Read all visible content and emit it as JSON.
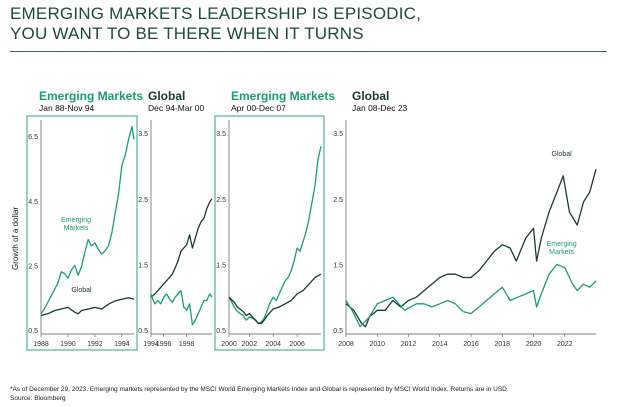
{
  "title_lines": [
    "EMERGING MARKETS LEADERSHIP IS EPISODIC,",
    "YOU WANT TO BE THERE WHEN IT TURNS"
  ],
  "ylabel": "Growth of a dollar",
  "footnote": "*As of December 29, 2023. Emerging markets represented by the MSCI World Emerging Markets Index and Global is represented by MSCI World Index. Returns are in USD.",
  "source": "Source: Bloomberg",
  "colors": {
    "emerging": "#1a9e6e",
    "global": "#1a3a2c",
    "box": "#4cb890"
  },
  "panels": [
    {
      "leader": "Emerging Markets",
      "range": "Jan 88-Nov 94"
    },
    {
      "leader": "Global",
      "range": "Dec 94-Mar 00"
    },
    {
      "leader": "Emerging Markets",
      "range": "Apr 00-Dec 07"
    },
    {
      "leader": "Global",
      "range": "Jan 08-Dec 23"
    }
  ],
  "chart_data": [
    {
      "type": "line",
      "title": "Emerging Markets Jan 88-Nov 94",
      "ylabel": "Growth of a dollar",
      "ylim": [
        0.5,
        7.0
      ],
      "yticks": [
        0.5,
        2.5,
        4.5,
        6.5
      ],
      "xlim": [
        1988.0,
        1994.9
      ],
      "xticks": [
        1988,
        1990,
        1992,
        1994
      ],
      "series": [
        {
          "name": "Emerging Markets",
          "series_label": "Emerging\nMarkets",
          "label_at": [
            1990.6,
            3.85
          ],
          "x": [
            1988.0,
            1988.25,
            1988.5,
            1988.75,
            1989.0,
            1989.25,
            1989.5,
            1989.75,
            1990.0,
            1990.25,
            1990.5,
            1990.75,
            1991.0,
            1991.25,
            1991.5,
            1991.75,
            1992.0,
            1992.25,
            1992.5,
            1992.75,
            1993.0,
            1993.25,
            1993.5,
            1993.75,
            1994.0,
            1994.25,
            1994.5,
            1994.75,
            1994.9
          ],
          "y": [
            1.0,
            1.15,
            1.35,
            1.55,
            1.75,
            1.95,
            2.3,
            2.25,
            2.1,
            2.35,
            2.5,
            2.2,
            2.45,
            2.9,
            3.3,
            3.1,
            3.2,
            3.0,
            2.85,
            2.95,
            3.1,
            3.5,
            4.1,
            4.7,
            5.6,
            5.9,
            6.4,
            6.8,
            6.4
          ]
        },
        {
          "name": "Global",
          "series_label": "Global",
          "label_at": [
            1991.0,
            1.68
          ],
          "x": [
            1988.0,
            1988.5,
            1989.0,
            1989.5,
            1990.0,
            1990.5,
            1990.75,
            1991.0,
            1991.5,
            1992.0,
            1992.5,
            1993.0,
            1993.5,
            1994.0,
            1994.5,
            1994.9
          ],
          "y": [
            0.95,
            1.0,
            1.1,
            1.15,
            1.2,
            1.05,
            1.0,
            1.1,
            1.15,
            1.2,
            1.15,
            1.3,
            1.4,
            1.45,
            1.5,
            1.45
          ]
        }
      ]
    },
    {
      "type": "line",
      "title": "Global Dec 94-Mar 00",
      "ylim": [
        0.5,
        3.7
      ],
      "yticks": [
        0.5,
        1.5,
        2.5,
        3.5
      ],
      "xlim": [
        1994.9,
        2000.2
      ],
      "xticks": [
        1994,
        1996,
        1998
      ],
      "series": [
        {
          "name": "Global",
          "x": [
            1994.9,
            1995.25,
            1995.5,
            1995.75,
            1996.0,
            1996.25,
            1996.5,
            1996.75,
            1997.0,
            1997.25,
            1997.5,
            1997.75,
            1998.0,
            1998.25,
            1998.5,
            1998.75,
            1999.0,
            1999.25,
            1999.5,
            1999.75,
            2000.0,
            2000.2
          ],
          "y": [
            1.0,
            1.05,
            1.1,
            1.15,
            1.2,
            1.25,
            1.3,
            1.35,
            1.45,
            1.55,
            1.7,
            1.75,
            1.8,
            1.95,
            1.75,
            1.9,
            2.05,
            2.15,
            2.2,
            2.35,
            2.45,
            2.5
          ]
        },
        {
          "name": "Emerging Markets",
          "x": [
            1994.9,
            1995.1,
            1995.25,
            1995.5,
            1995.75,
            1996.0,
            1996.25,
            1996.5,
            1996.75,
            1997.0,
            1997.25,
            1997.5,
            1997.75,
            1998.0,
            1998.25,
            1998.5,
            1998.75,
            1999.0,
            1999.25,
            1999.5,
            1999.75,
            2000.0,
            2000.2
          ],
          "y": [
            1.05,
            0.95,
            0.9,
            0.95,
            0.9,
            1.0,
            1.05,
            0.98,
            0.92,
            1.0,
            1.05,
            1.1,
            0.85,
            0.8,
            0.9,
            0.58,
            0.65,
            0.75,
            0.85,
            0.95,
            0.95,
            1.05,
            1.0
          ]
        }
      ]
    },
    {
      "type": "line",
      "title": "Emerging Markets Apr 00-Dec 07",
      "ylim": [
        0.5,
        3.7
      ],
      "yticks": [
        0.5,
        1.5,
        2.5,
        3.5
      ],
      "xlim": [
        2000.3,
        2008.0
      ],
      "xticks": [
        2000,
        2002,
        2004,
        2006
      ],
      "series": [
        {
          "name": "Emerging Markets",
          "x": [
            2000.3,
            2000.75,
            2001.0,
            2001.5,
            2001.75,
            2002.0,
            2002.5,
            2002.75,
            2003.0,
            2003.25,
            2003.5,
            2003.75,
            2004.0,
            2004.25,
            2004.5,
            2004.75,
            2005.0,
            2005.25,
            2005.5,
            2005.75,
            2006.0,
            2006.25,
            2006.5,
            2006.75,
            2007.0,
            2007.25,
            2007.5,
            2007.75,
            2008.0
          ],
          "y": [
            1.0,
            0.85,
            0.78,
            0.72,
            0.65,
            0.7,
            0.66,
            0.6,
            0.62,
            0.68,
            0.8,
            0.92,
            1.0,
            0.95,
            1.05,
            1.15,
            1.25,
            1.3,
            1.4,
            1.55,
            1.75,
            1.7,
            1.85,
            2.0,
            2.2,
            2.45,
            2.7,
            3.1,
            3.3
          ]
        },
        {
          "name": "Global",
          "x": [
            2000.3,
            2000.75,
            2001.0,
            2001.5,
            2001.75,
            2002.0,
            2002.5,
            2002.75,
            2003.0,
            2003.25,
            2003.5,
            2004.0,
            2004.5,
            2005.0,
            2005.5,
            2006.0,
            2006.5,
            2007.0,
            2007.5,
            2008.0
          ],
          "y": [
            1.0,
            0.92,
            0.85,
            0.78,
            0.72,
            0.75,
            0.65,
            0.6,
            0.6,
            0.65,
            0.72,
            0.82,
            0.85,
            0.9,
            0.95,
            1.05,
            1.1,
            1.2,
            1.3,
            1.35
          ]
        }
      ]
    },
    {
      "type": "line",
      "title": "Global Jan 08-Dec 23",
      "ylim": [
        0.5,
        3.7
      ],
      "yticks": [
        0.5,
        1.5,
        2.5,
        3.5
      ],
      "xlim": [
        2008.0,
        2024.0
      ],
      "xticks": [
        2008,
        2010,
        2012,
        2014,
        2016,
        2018,
        2020,
        2022
      ],
      "series": [
        {
          "name": "Global",
          "series_label": "Global",
          "label_at": [
            2021.8,
            3.15
          ],
          "x": [
            2008.0,
            2008.5,
            2009.0,
            2009.25,
            2009.5,
            2010.0,
            2010.5,
            2011.0,
            2011.5,
            2012.0,
            2012.5,
            2013.0,
            2013.5,
            2014.0,
            2014.5,
            2015.0,
            2015.5,
            2016.0,
            2016.5,
            2017.0,
            2017.5,
            2018.0,
            2018.5,
            2018.9,
            2019.5,
            2020.0,
            2020.2,
            2020.5,
            2021.0,
            2021.5,
            2021.9,
            2022.3,
            2022.8,
            2023.2,
            2023.6,
            2024.0
          ],
          "y": [
            0.9,
            0.8,
            0.6,
            0.55,
            0.7,
            0.8,
            0.8,
            0.95,
            0.85,
            0.95,
            1.0,
            1.1,
            1.2,
            1.3,
            1.35,
            1.35,
            1.3,
            1.3,
            1.4,
            1.55,
            1.7,
            1.8,
            1.75,
            1.55,
            1.9,
            2.05,
            1.55,
            1.9,
            2.3,
            2.6,
            2.85,
            2.3,
            2.1,
            2.45,
            2.6,
            2.95
          ]
        },
        {
          "name": "Emerging Markets",
          "series_label": "Emerging\nMarkets",
          "label_at": [
            2021.8,
            1.78
          ],
          "x": [
            2008.0,
            2008.5,
            2008.9,
            2009.5,
            2010.0,
            2010.5,
            2011.0,
            2011.75,
            2012.5,
            2013.0,
            2013.5,
            2014.0,
            2014.5,
            2015.0,
            2015.5,
            2016.0,
            2016.5,
            2017.0,
            2017.5,
            2018.0,
            2018.5,
            2019.0,
            2019.5,
            2020.0,
            2020.2,
            2020.5,
            2021.0,
            2021.5,
            2022.0,
            2022.5,
            2022.8,
            2023.2,
            2023.6,
            2024.0
          ],
          "y": [
            0.95,
            0.75,
            0.55,
            0.7,
            0.9,
            0.95,
            1.0,
            0.8,
            0.9,
            0.9,
            0.85,
            0.9,
            0.95,
            0.9,
            0.78,
            0.75,
            0.85,
            0.95,
            1.05,
            1.15,
            0.95,
            1.0,
            1.05,
            1.1,
            0.85,
            1.05,
            1.35,
            1.5,
            1.45,
            1.2,
            1.1,
            1.2,
            1.15,
            1.25
          ]
        }
      ]
    }
  ]
}
